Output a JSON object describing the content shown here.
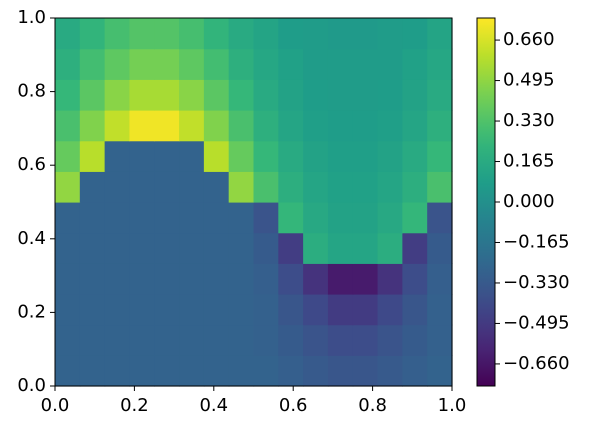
{
  "chart_data": {
    "type": "heatmap",
    "colormap": "viridis",
    "x": [
      0.03125,
      0.09375,
      0.15625,
      0.21875,
      0.28125,
      0.34375,
      0.40625,
      0.46875,
      0.53125,
      0.59375,
      0.65625,
      0.71875,
      0.78125,
      0.84375,
      0.90625,
      0.96875
    ],
    "y": [
      0.0417,
      0.125,
      0.2083,
      0.2917,
      0.375,
      0.4583,
      0.5417,
      0.625,
      0.7083,
      0.7917,
      0.875,
      0.9583
    ],
    "z": [
      [
        -0.28,
        -0.28,
        -0.28,
        -0.28,
        -0.28,
        -0.28,
        -0.28,
        -0.28,
        -0.28,
        -0.3,
        -0.33,
        -0.35,
        -0.35,
        -0.33,
        -0.3,
        -0.28
      ],
      [
        -0.28,
        -0.28,
        -0.28,
        -0.28,
        -0.28,
        -0.28,
        -0.28,
        -0.28,
        -0.29,
        -0.32,
        -0.36,
        -0.4,
        -0.4,
        -0.36,
        -0.32,
        -0.29
      ],
      [
        -0.28,
        -0.28,
        -0.28,
        -0.28,
        -0.28,
        -0.28,
        -0.28,
        -0.28,
        -0.29,
        -0.35,
        -0.42,
        -0.49,
        -0.49,
        -0.42,
        -0.35,
        -0.29
      ],
      [
        -0.28,
        -0.28,
        -0.28,
        -0.28,
        -0.28,
        -0.28,
        -0.28,
        -0.28,
        -0.3,
        -0.4,
        -0.53,
        -0.64,
        -0.64,
        -0.53,
        -0.4,
        -0.3
      ],
      [
        -0.28,
        -0.28,
        -0.28,
        -0.28,
        -0.28,
        -0.28,
        -0.28,
        -0.28,
        -0.32,
        -0.48,
        0.18,
        0.13,
        0.13,
        0.18,
        -0.48,
        -0.32
      ],
      [
        -0.28,
        -0.28,
        -0.28,
        -0.28,
        -0.28,
        -0.28,
        -0.28,
        -0.28,
        -0.36,
        0.24,
        0.15,
        0.11,
        0.11,
        0.15,
        0.24,
        -0.36
      ],
      [
        0.5,
        -0.28,
        -0.28,
        -0.28,
        -0.28,
        -0.28,
        -0.28,
        0.5,
        0.31,
        0.19,
        0.13,
        0.1,
        0.1,
        0.13,
        0.19,
        0.31
      ],
      [
        0.39,
        0.59,
        -0.28,
        -0.28,
        -0.28,
        -0.28,
        0.59,
        0.39,
        0.25,
        0.16,
        0.11,
        0.09,
        0.09,
        0.11,
        0.16,
        0.25
      ],
      [
        0.31,
        0.46,
        0.61,
        0.72,
        0.72,
        0.61,
        0.46,
        0.31,
        0.2,
        0.13,
        0.09,
        0.08,
        0.08,
        0.09,
        0.13,
        0.2
      ],
      [
        0.25,
        0.36,
        0.48,
        0.55,
        0.55,
        0.48,
        0.36,
        0.25,
        0.16,
        0.11,
        0.08,
        0.07,
        0.07,
        0.08,
        0.11,
        0.16
      ],
      [
        0.2,
        0.29,
        0.37,
        0.43,
        0.43,
        0.37,
        0.29,
        0.2,
        0.14,
        0.1,
        0.07,
        0.07,
        0.07,
        0.07,
        0.1,
        0.14
      ],
      [
        0.16,
        0.23,
        0.3,
        0.34,
        0.34,
        0.3,
        0.23,
        0.16,
        0.12,
        0.08,
        0.07,
        0.06,
        0.06,
        0.07,
        0.08,
        0.12
      ]
    ],
    "xlim": [
      0,
      1
    ],
    "ylim": [
      0,
      1
    ],
    "xticks": [
      {
        "value": 0,
        "label": "0.0"
      },
      {
        "value": 0.2,
        "label": "0.2"
      },
      {
        "value": 0.4,
        "label": "0.4"
      },
      {
        "value": 0.6,
        "label": "0.6"
      },
      {
        "value": 0.8,
        "label": "0.8"
      },
      {
        "value": 1,
        "label": "1.0"
      }
    ],
    "yticks": [
      {
        "value": 0,
        "label": "0.0"
      },
      {
        "value": 0.2,
        "label": "0.2"
      },
      {
        "value": 0.4,
        "label": "0.4"
      },
      {
        "value": 0.6,
        "label": "0.6"
      },
      {
        "value": 0.8,
        "label": "0.8"
      },
      {
        "value": 1,
        "label": "1.0"
      }
    ],
    "clim": [
      -0.75,
      0.75
    ],
    "cticks": [
      {
        "value": -0.66,
        "label": "−0.660"
      },
      {
        "value": -0.495,
        "label": "−0.495"
      },
      {
        "value": -0.33,
        "label": "−0.330"
      },
      {
        "value": -0.165,
        "label": "−0.165"
      },
      {
        "value": 0,
        "label": "0.000"
      },
      {
        "value": 0.165,
        "label": "0.165"
      },
      {
        "value": 0.33,
        "label": "0.330"
      },
      {
        "value": 0.495,
        "label": "0.495"
      },
      {
        "value": 0.66,
        "label": "0.660"
      }
    ]
  }
}
